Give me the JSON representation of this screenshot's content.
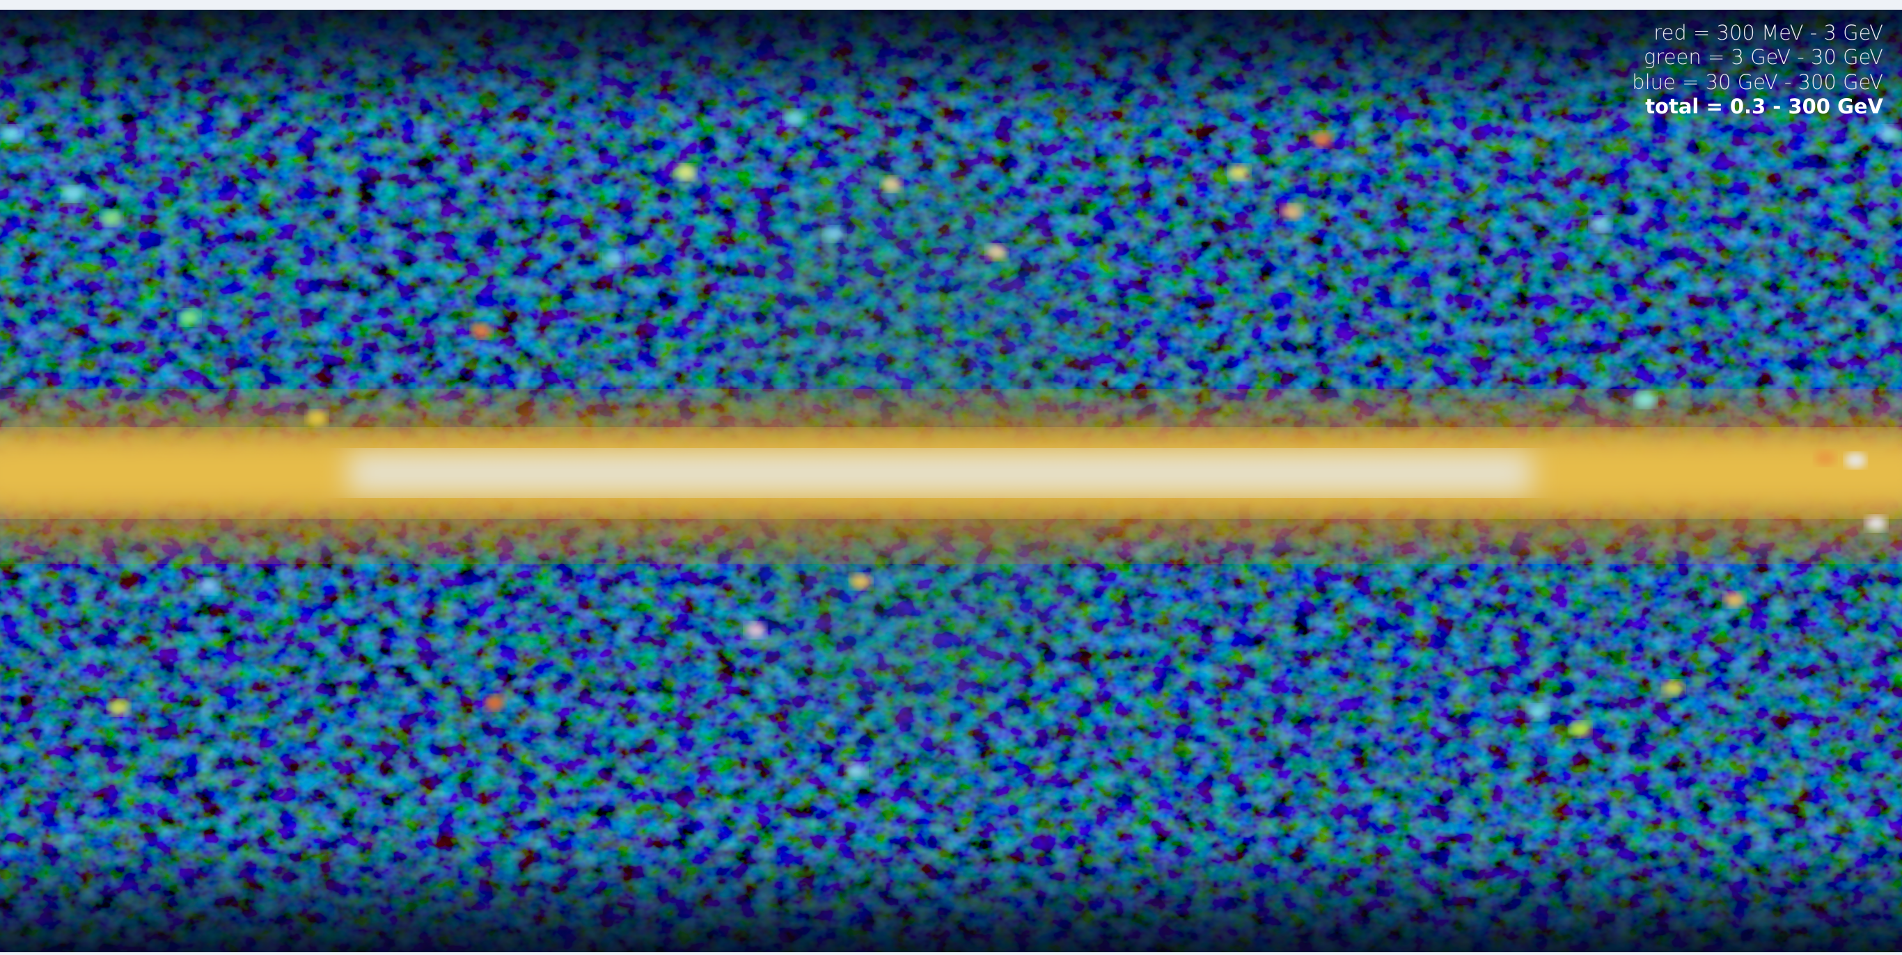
{
  "legend": {
    "lines": [
      "red = 300 MeV - 3 GeV",
      "green = 3 GeV - 30 GeV",
      "blue = 30 GeV - 300 GeV"
    ],
    "total": "total = 0.3 - 300 GeV"
  }
}
